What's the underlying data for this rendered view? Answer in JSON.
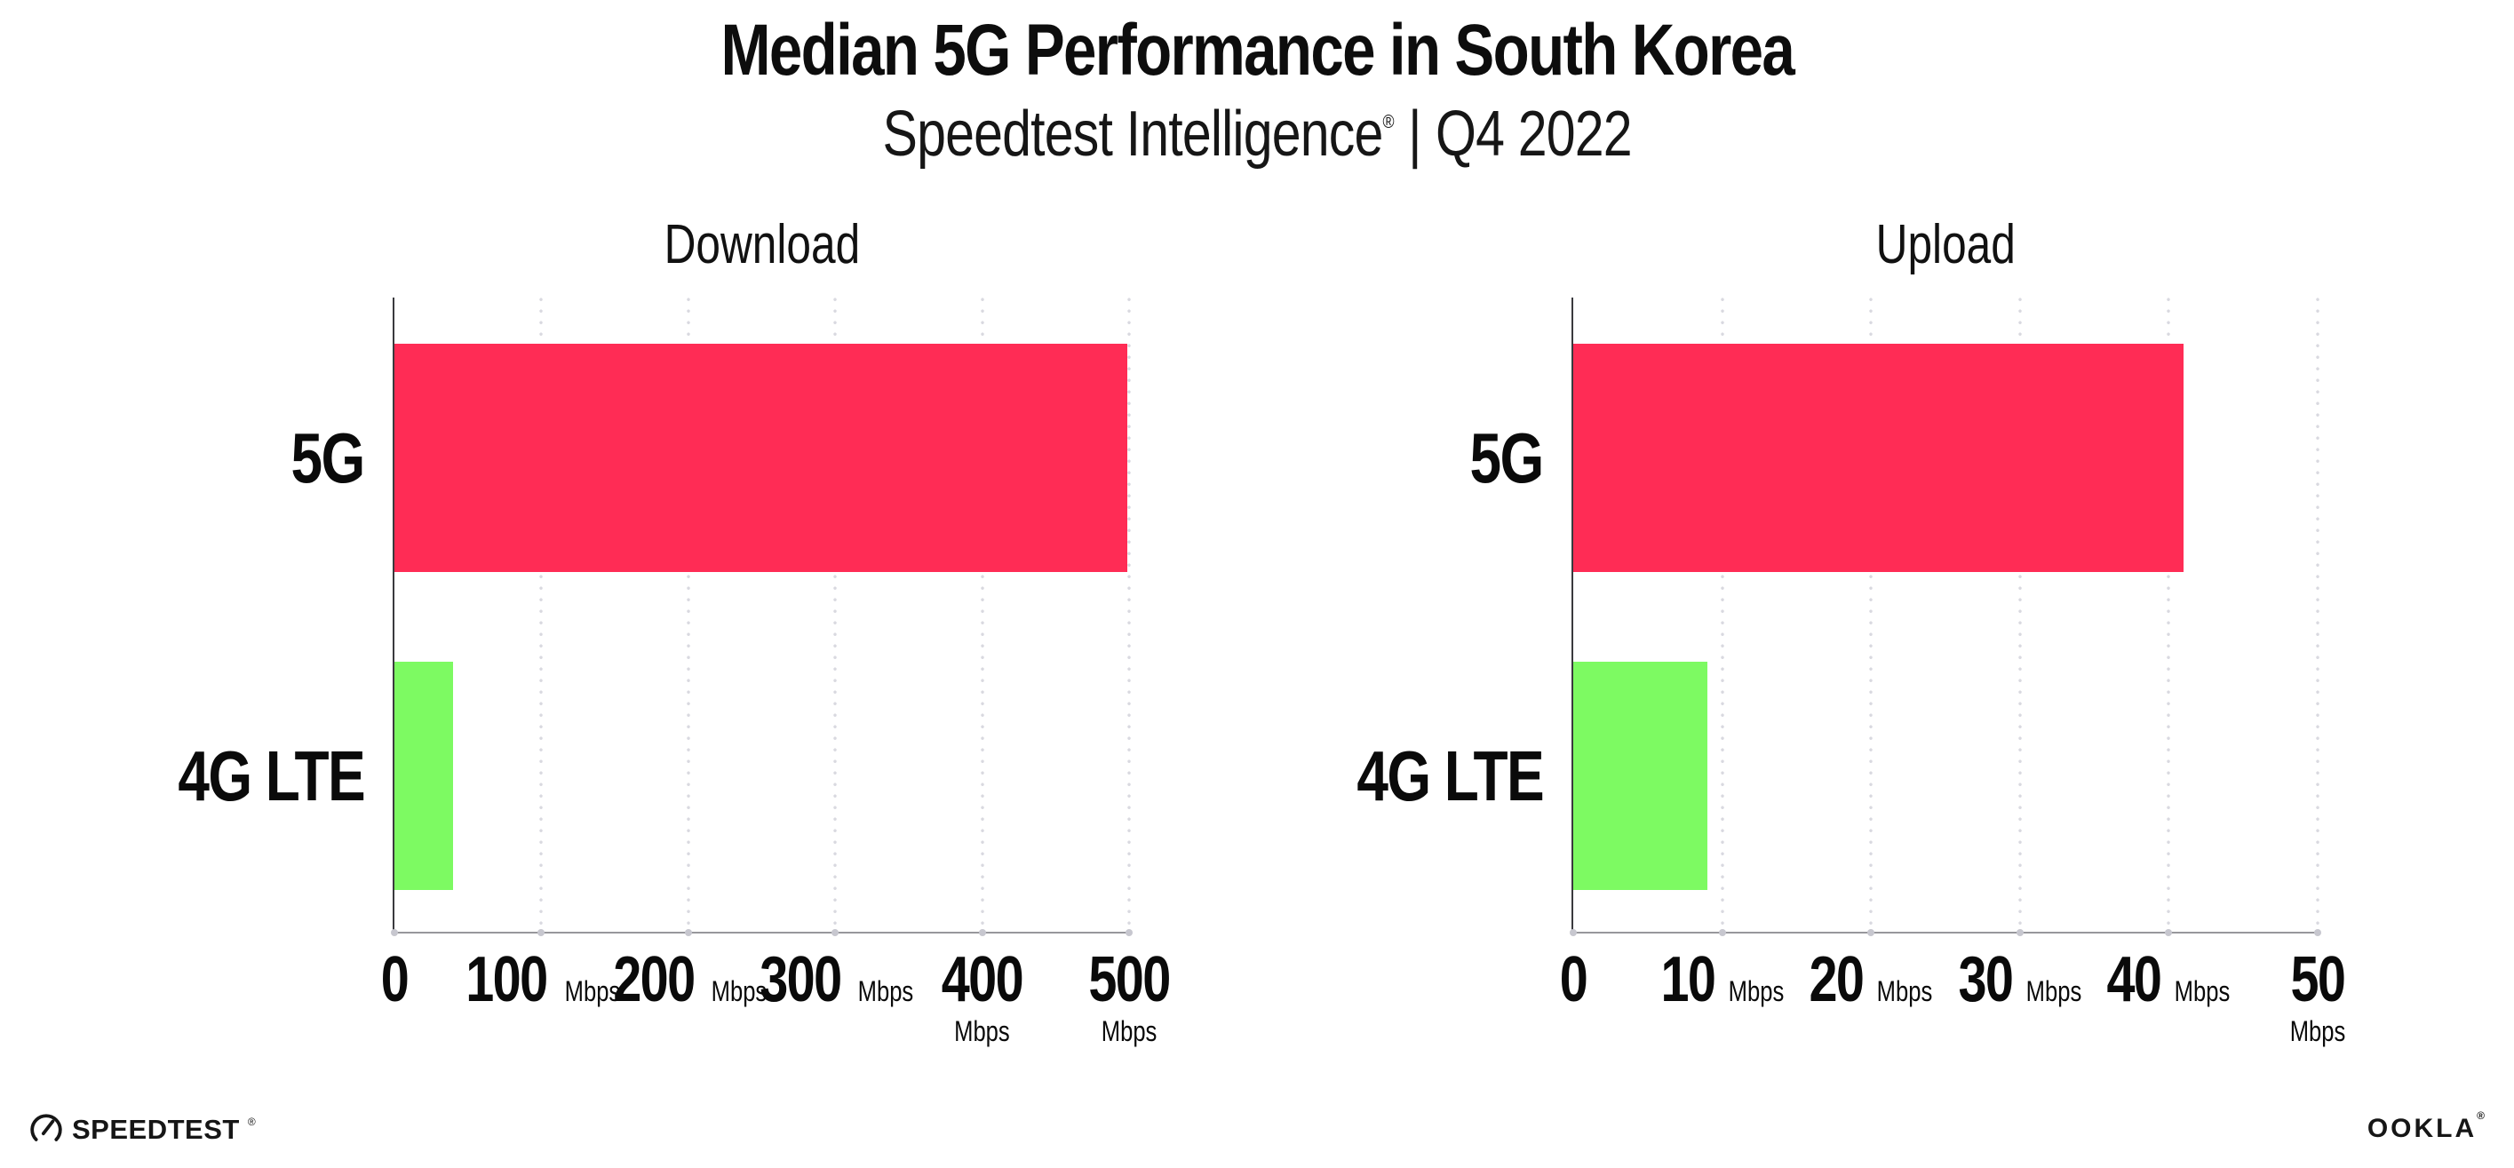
{
  "header": {
    "title": "Median 5G Performance in South Korea",
    "subtitle": {
      "brand": "Speedtest Intelligence",
      "registered_mark": "®",
      "separator": "|",
      "period": "Q4 2022"
    }
  },
  "chart_data": [
    {
      "type": "bar",
      "orientation": "horizontal",
      "title": "Download",
      "categories": [
        "5G",
        "4G LTE"
      ],
      "values": [
        499,
        40
      ],
      "unit": "Mbps",
      "xlim": [
        0,
        500
      ],
      "xticks": [
        0,
        100,
        200,
        300,
        400,
        500
      ],
      "bar_colors": [
        "#FF2C55",
        "#7DFA62"
      ],
      "grid": "vertical-dotted",
      "legend": "none"
    },
    {
      "type": "bar",
      "orientation": "horizontal",
      "title": "Upload",
      "categories": [
        "5G",
        "4G LTE"
      ],
      "values": [
        41,
        9
      ],
      "unit": "Mbps",
      "xlim": [
        0,
        50
      ],
      "xticks": [
        0,
        10,
        20,
        30,
        40,
        50
      ],
      "bar_colors": [
        "#FF2C55",
        "#7DFA62"
      ],
      "grid": "vertical-dotted",
      "legend": "none"
    }
  ],
  "footer": {
    "speedtest_wordmark": "SPEEDTEST",
    "speedtest_mark": "®",
    "ookla_wordmark": "OOKLA",
    "ookla_mark": "®"
  },
  "colors": {
    "bar_5g": "#FF2C55",
    "bar_4g_lte": "#7DFA62",
    "background": "#FFFFFF",
    "text": "#0D0D0D",
    "gridline": "#D9D9E0",
    "x_axis": "#97979C",
    "y_axis": "#3A3A3E"
  }
}
